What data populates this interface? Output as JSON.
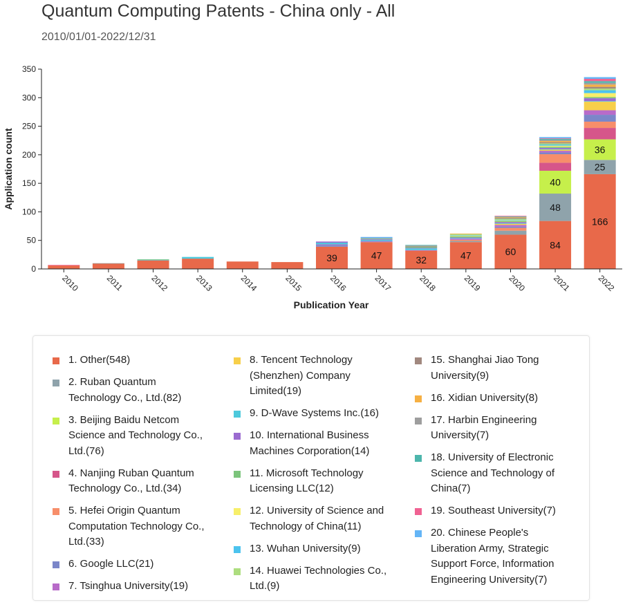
{
  "chart_data": {
    "type": "stacked-bar",
    "title": "Quantum Computing Patents - China only - All",
    "subtitle": "2010/01/01-2022/12/31",
    "x_label": "Publication Year",
    "y_label": "Application count",
    "categories": [
      "2010",
      "2011",
      "2012",
      "2013",
      "2014",
      "2015",
      "2016",
      "2017",
      "2018",
      "2019",
      "2020",
      "2021",
      "2022"
    ],
    "ylim": [
      0,
      350
    ],
    "yticks": [
      0,
      50,
      100,
      150,
      200,
      250,
      300,
      350
    ],
    "series": [
      {
        "name": "1. Other(548)",
        "color": "#e8694a",
        "values": [
          6,
          9,
          15,
          18,
          13,
          12,
          39,
          47,
          32,
          47,
          60,
          84,
          166
        ]
      },
      {
        "name": "2. Ruban Quantum Technology Co., Ltd.(82)",
        "color": "#8fa3ab",
        "values": [
          0,
          0,
          0,
          0,
          0,
          0,
          0,
          0,
          0,
          2,
          7,
          48,
          25
        ]
      },
      {
        "name": "3. Beijing Baidu Netcom Science and Technology Co., Ltd.(76)",
        "color": "#c6ef4b",
        "values": [
          0,
          0,
          0,
          0,
          0,
          0,
          0,
          0,
          0,
          0,
          0,
          40,
          36
        ]
      },
      {
        "name": "4. Nanjing Ruban Quantum Technology Co., Ltd.(34)",
        "color": "#d6568a",
        "values": [
          0,
          0,
          0,
          0,
          0,
          0,
          0,
          0,
          0,
          0,
          0,
          14,
          20
        ]
      },
      {
        "name": "5. Hefei Origin Quantum Computation Technology Co., Ltd.(33)",
        "color": "#f78e6a",
        "values": [
          0,
          0,
          0,
          0,
          0,
          0,
          0,
          0,
          0,
          2,
          5,
          15,
          11
        ]
      },
      {
        "name": "6. Google LLC(21)",
        "color": "#7b86c9",
        "values": [
          0,
          0,
          0,
          0,
          0,
          0,
          3,
          1,
          0,
          0,
          2,
          3,
          12
        ]
      },
      {
        "name": "7. Tsinghua University(19)",
        "color": "#b86bc9",
        "values": [
          0,
          0,
          0,
          0,
          0,
          0,
          1,
          1,
          1,
          2,
          3,
          3,
          8
        ]
      },
      {
        "name": "8. Tencent Technology (Shenzhen) Company Limited(19)",
        "color": "#f7cf4a",
        "values": [
          0,
          0,
          0,
          0,
          0,
          0,
          0,
          0,
          0,
          0,
          2,
          2,
          15
        ]
      },
      {
        "name": "9. D-Wave Systems Inc.(16)",
        "color": "#4dc9dc",
        "values": [
          0,
          0,
          1,
          3,
          0,
          0,
          3,
          2,
          3,
          1,
          1,
          1,
          1
        ]
      },
      {
        "name": "10. International Business Machines Corporation(14)",
        "color": "#9b6bd0",
        "values": [
          0,
          0,
          0,
          0,
          0,
          0,
          2,
          1,
          1,
          1,
          2,
          2,
          5
        ]
      },
      {
        "name": "11. Microsoft Technology Licensing LLC(12)",
        "color": "#7cc47c",
        "values": [
          0,
          0,
          1,
          0,
          0,
          0,
          0,
          1,
          2,
          2,
          2,
          2,
          2
        ]
      },
      {
        "name": "12. University of Science and Technology of China(11)",
        "color": "#f7ef6a",
        "values": [
          0,
          0,
          0,
          0,
          0,
          0,
          0,
          0,
          0,
          1,
          1,
          2,
          7
        ]
      },
      {
        "name": "13. Wuhan University(9)",
        "color": "#4cc3ee",
        "values": [
          0,
          0,
          0,
          0,
          0,
          0,
          0,
          0,
          0,
          1,
          1,
          2,
          5
        ]
      },
      {
        "name": "14. Huawei Technologies Co., Ltd.(9)",
        "color": "#addd7f",
        "values": [
          0,
          0,
          0,
          0,
          0,
          0,
          0,
          0,
          0,
          2,
          2,
          2,
          3
        ]
      },
      {
        "name": "15. Shanghai Jiao Tong University(9)",
        "color": "#a1887f",
        "values": [
          0,
          1,
          0,
          0,
          0,
          0,
          0,
          0,
          1,
          0,
          2,
          2,
          3
        ]
      },
      {
        "name": "16. Xidian University(8)",
        "color": "#f6b043",
        "values": [
          0,
          0,
          0,
          0,
          0,
          0,
          0,
          0,
          0,
          1,
          1,
          2,
          4
        ]
      },
      {
        "name": "17. Harbin Engineering University(7)",
        "color": "#9e9e9e",
        "values": [
          0,
          0,
          0,
          0,
          0,
          0,
          0,
          1,
          1,
          0,
          0,
          2,
          3
        ]
      },
      {
        "name": "18. University of Electronic Science and Technology of China(7)",
        "color": "#4db6ac",
        "values": [
          0,
          0,
          0,
          0,
          0,
          0,
          0,
          0,
          1,
          0,
          1,
          2,
          3
        ]
      },
      {
        "name": "19. Southeast University(7)",
        "color": "#f06292",
        "values": [
          1,
          0,
          0,
          0,
          0,
          0,
          0,
          0,
          0,
          0,
          1,
          1,
          4
        ]
      },
      {
        "name": "20. Chinese People's Liberation Army, Strategic Support Force, Information Engineering University(7)",
        "color": "#64b5f6",
        "values": [
          0,
          0,
          0,
          0,
          0,
          0,
          0,
          2,
          0,
          0,
          0,
          2,
          3
        ]
      }
    ]
  }
}
